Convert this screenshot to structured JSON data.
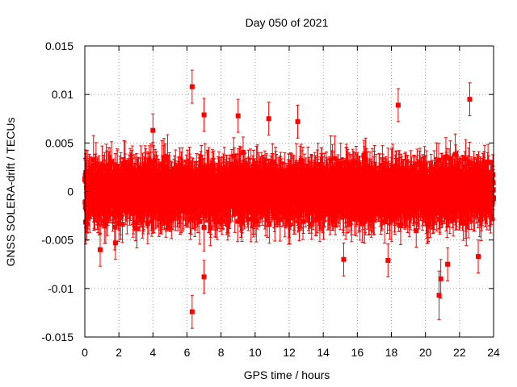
{
  "chart_data": {
    "type": "scatter",
    "title": "Day 050 of 2021",
    "xlabel": "GPS time / hours",
    "ylabel": "GNSS SOLERA-drift / TECUs",
    "xlim": [
      0,
      24
    ],
    "ylim": [
      -0.015,
      0.015
    ],
    "x_ticks": [
      0,
      2,
      4,
      6,
      8,
      10,
      12,
      14,
      16,
      18,
      20,
      22,
      24
    ],
    "x_tick_labels": [
      "0",
      "2",
      "4",
      "6",
      "8",
      "10",
      "12",
      "14",
      "16",
      "18",
      "20",
      "22",
      "24"
    ],
    "y_ticks": [
      -0.015,
      -0.01,
      -0.005,
      0,
      0.005,
      0.01,
      0.015
    ],
    "y_tick_labels": [
      "-0.015",
      "-0.01",
      "-0.005",
      "0",
      "0.005",
      "0.01",
      "0.015"
    ],
    "grid": true,
    "color": "#ff0000",
    "marker": "square",
    "error_bars": true,
    "series": [
      {
        "x_step_hours": 0.0083333,
        "y_typical_range": [
          -0.006,
          0.006
        ],
        "y_typical_error": 0.002,
        "notable_points": [
          {
            "x": 6.3,
            "y": 0.0108,
            "err": 0.0017
          },
          {
            "x": 6.3,
            "y": -0.0124,
            "err": 0.0017
          },
          {
            "x": 7.0,
            "y": 0.0079,
            "err": 0.0017
          },
          {
            "x": 7.0,
            "y": -0.0088,
            "err": 0.0017
          },
          {
            "x": 4.0,
            "y": 0.0063,
            "err": 0.0017
          },
          {
            "x": 9.0,
            "y": 0.0078,
            "err": 0.0017
          },
          {
            "x": 18.4,
            "y": 0.0089,
            "err": 0.0017
          },
          {
            "x": 22.6,
            "y": 0.0095,
            "err": 0.0017
          },
          {
            "x": 20.8,
            "y": -0.0107,
            "err": 0.0025
          },
          {
            "x": 20.9,
            "y": -0.009,
            "err": 0.002
          },
          {
            "x": 0.9,
            "y": -0.006,
            "err": 0.0017
          },
          {
            "x": 1.8,
            "y": -0.0053,
            "err": 0.0017
          },
          {
            "x": 10.8,
            "y": 0.0075,
            "err": 0.0017
          },
          {
            "x": 12.5,
            "y": 0.0072,
            "err": 0.0017
          },
          {
            "x": 15.2,
            "y": -0.007,
            "err": 0.0017
          },
          {
            "x": 17.8,
            "y": -0.0071,
            "err": 0.0017
          },
          {
            "x": 21.3,
            "y": -0.0075,
            "err": 0.0017
          },
          {
            "x": 23.1,
            "y": -0.0067,
            "err": 0.0017
          }
        ]
      }
    ]
  }
}
